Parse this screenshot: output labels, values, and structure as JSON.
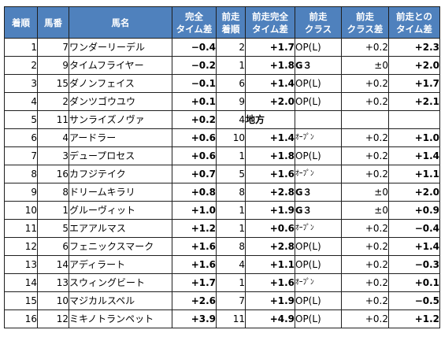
{
  "headers": [
    {
      "line1": "着順",
      "line2": ""
    },
    {
      "line1": "馬番",
      "line2": ""
    },
    {
      "line1": "馬名",
      "line2": ""
    },
    {
      "line1": "完全",
      "line2": "タイム差"
    },
    {
      "line1": "前走",
      "line2": "着順"
    },
    {
      "line1": "前走完全",
      "line2": "タイム差"
    },
    {
      "line1": "前走",
      "line2": "クラス"
    },
    {
      "line1": "前走",
      "line2": "クラス差"
    },
    {
      "line1": "前走との",
      "line2": "タイム差"
    }
  ],
  "rows": [
    {
      "chakujun": "1",
      "umaban": "7",
      "bamei": "ワンダーリーデル",
      "kanzen": "−0.4",
      "zensou_chaku": "2",
      "zensou_kanzen": "+1.7",
      "zensou_class": "OP(L)",
      "class_sa": "+0.2",
      "time_sa": "+2.3"
    },
    {
      "chakujun": "2",
      "umaban": "9",
      "bamei": "タイムフライヤー",
      "kanzen": "−0.2",
      "zensou_chaku": "1",
      "zensou_kanzen": "+1.8",
      "zensou_class": "G３",
      "class_sa": "±0",
      "time_sa": "+2.0"
    },
    {
      "chakujun": "3",
      "umaban": "15",
      "bamei": "ダノンフェイス",
      "kanzen": "−0.1",
      "zensou_chaku": "6",
      "zensou_kanzen": "+1.4",
      "zensou_class": "OP(L)",
      "class_sa": "+0.2",
      "time_sa": "+1.7"
    },
    {
      "chakujun": "4",
      "umaban": "2",
      "bamei": "ダンツゴウユウ",
      "kanzen": "+0.1",
      "zensou_chaku": "9",
      "zensou_kanzen": "+2.0",
      "zensou_class": "OP(L)",
      "class_sa": "+0.2",
      "time_sa": "+2.1"
    },
    {
      "chakujun": "5",
      "umaban": "11",
      "bamei": "サンライズノヴァ",
      "kanzen": "+0.2",
      "zensou_chaku": "4",
      "zensou_kanzen": "地方",
      "zensou_class": "",
      "class_sa": "",
      "time_sa": ""
    },
    {
      "chakujun": "6",
      "umaban": "4",
      "bamei": "アードラー",
      "kanzen": "+0.6",
      "zensou_chaku": "10",
      "zensou_kanzen": "+1.4",
      "zensou_class": "ｵｰﾌﾟﾝ",
      "class_sa": "+0.2",
      "time_sa": "+1.0"
    },
    {
      "chakujun": "7",
      "umaban": "3",
      "bamei": "デュープロセス",
      "kanzen": "+0.6",
      "zensou_chaku": "1",
      "zensou_kanzen": "+1.8",
      "zensou_class": "OP(L)",
      "class_sa": "+0.2",
      "time_sa": "+1.4"
    },
    {
      "chakujun": "8",
      "umaban": "16",
      "bamei": "カフジテイク",
      "kanzen": "+0.7",
      "zensou_chaku": "5",
      "zensou_kanzen": "+1.6",
      "zensou_class": "ｵｰﾌﾟﾝ",
      "class_sa": "+0.2",
      "time_sa": "+1.1"
    },
    {
      "chakujun": "9",
      "umaban": "8",
      "bamei": "ドリームキラリ",
      "kanzen": "+0.8",
      "zensou_chaku": "8",
      "zensou_kanzen": "+2.8",
      "zensou_class": "G３",
      "class_sa": "±0",
      "time_sa": "+2.0"
    },
    {
      "chakujun": "10",
      "umaban": "1",
      "bamei": "グルーヴィット",
      "kanzen": "+1.0",
      "zensou_chaku": "1",
      "zensou_kanzen": "+1.9",
      "zensou_class": "G３",
      "class_sa": "±0",
      "time_sa": "+0.9"
    },
    {
      "chakujun": "11",
      "umaban": "5",
      "bamei": "エアアルマス",
      "kanzen": "+1.2",
      "zensou_chaku": "1",
      "zensou_kanzen": "+0.6",
      "zensou_class": "ｵｰﾌﾟﾝ",
      "class_sa": "+0.2",
      "time_sa": "−0.4"
    },
    {
      "chakujun": "12",
      "umaban": "6",
      "bamei": "フェニックスマーク",
      "kanzen": "+1.6",
      "zensou_chaku": "8",
      "zensou_kanzen": "+2.8",
      "zensou_class": "OP(L)",
      "class_sa": "+0.2",
      "time_sa": "+1.4"
    },
    {
      "chakujun": "13",
      "umaban": "14",
      "bamei": "アディラート",
      "kanzen": "+1.6",
      "zensou_chaku": "4",
      "zensou_kanzen": "+1.1",
      "zensou_class": "OP(L)",
      "class_sa": "+0.2",
      "time_sa": "−0.3"
    },
    {
      "chakujun": "14",
      "umaban": "13",
      "bamei": "スウィングビート",
      "kanzen": "+1.7",
      "zensou_chaku": "1",
      "zensou_kanzen": "+1.6",
      "zensou_class": "ｵｰﾌﾟﾝ",
      "class_sa": "+0.2",
      "time_sa": "+0.1"
    },
    {
      "chakujun": "15",
      "umaban": "10",
      "bamei": "マジカルスペル",
      "kanzen": "+2.6",
      "zensou_chaku": "7",
      "zensou_kanzen": "+1.9",
      "zensou_class": "OP(L)",
      "class_sa": "+0.2",
      "time_sa": "−0.5"
    },
    {
      "chakujun": "16",
      "umaban": "12",
      "bamei": "ミキノトランペット",
      "kanzen": "+3.9",
      "zensou_chaku": "11",
      "zensou_kanzen": "+4.9",
      "zensou_class": "OP(L)",
      "class_sa": "+0.2",
      "time_sa": "+1.2"
    }
  ],
  "colors": {
    "header_bg": "#4f81bd",
    "header_text": "#ffffff",
    "negative": "#ff0000",
    "border": "#1f1f1f"
  }
}
